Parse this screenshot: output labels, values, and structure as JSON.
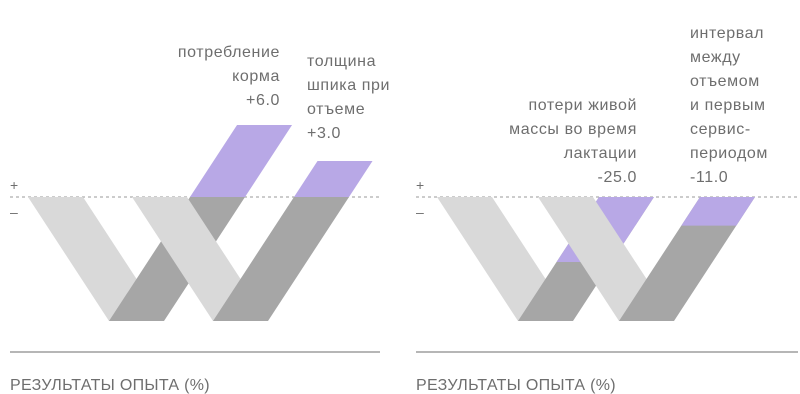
{
  "colors": {
    "light_gray": "#d9d9d9",
    "dark_gray": "#a6a6a6",
    "accent_purple": "#b8a8e6",
    "text": "#6e6e6e",
    "baseline": "#6e6e6e"
  },
  "chart_data": [
    {
      "type": "bar",
      "xlabel": "РЕЗУЛЬТАТЫ ОПЫТА (%)",
      "sign_plus": "+",
      "sign_minus": "–",
      "categories": [
        "потребление корма",
        "толщина шпика при отъеме"
      ],
      "values": [
        6.0,
        3.0
      ],
      "value_labels": [
        "+6.0",
        "+3.0"
      ],
      "label_lines": [
        [
          "потребление",
          "корма"
        ],
        [
          "толщина",
          "шпика при",
          "отъеме"
        ]
      ]
    },
    {
      "type": "bar",
      "xlabel": "РЕЗУЛЬТАТЫ ОПЫТА (%)",
      "sign_plus": "+",
      "sign_minus": "–",
      "categories": [
        "потери живой массы во время лактации",
        "интервал между отъемом и первым сервис-периодом"
      ],
      "values": [
        -25.0,
        -11.0
      ],
      "value_labels": [
        "-25.0",
        "-11.0"
      ],
      "label_lines": [
        [
          "потери живой",
          "массы во время",
          "лактации"
        ],
        [
          "интервал",
          "между",
          "отъемом",
          "и  первым",
          "сервис-",
          "периодом"
        ]
      ]
    }
  ]
}
